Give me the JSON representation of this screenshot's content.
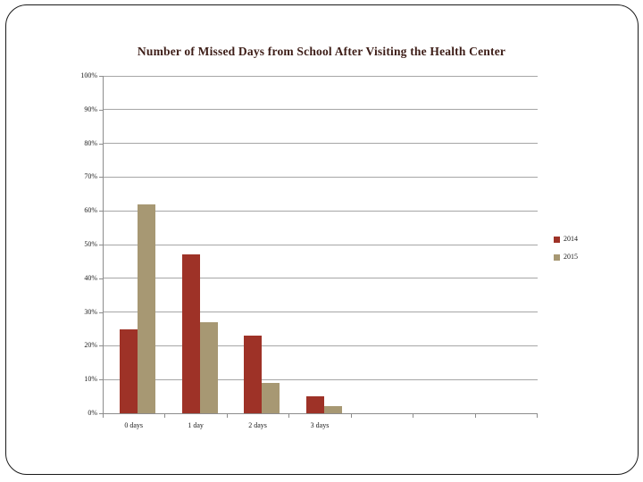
{
  "slide": {
    "title_color": "#3d1d17"
  },
  "chart_data": {
    "type": "bar",
    "title": "Number of Missed Days from School After Visiting the Health Center",
    "categories": [
      "0 days",
      "1 day",
      "2 days",
      "3 days"
    ],
    "extra_unlabeled_category_slots": 3,
    "series": [
      {
        "name": "2014",
        "color": "#9e3227",
        "values": [
          25,
          47,
          23,
          5
        ]
      },
      {
        "name": "2015",
        "color": "#a79873",
        "values": [
          62,
          27,
          9,
          2
        ]
      }
    ],
    "xlabel": "",
    "ylabel": "",
    "ylim": [
      0,
      100
    ],
    "ytick_step": 10,
    "ytick_labels": [
      "0%",
      "10%",
      "20%",
      "30%",
      "40%",
      "50%",
      "60%",
      "70%",
      "80%",
      "90%",
      "100%"
    ],
    "grid": true,
    "gridline_color": "#a6a6a6",
    "axis_color": "#8c8c8c",
    "legend_position": "right",
    "legend_entries": [
      "2014",
      "2015"
    ]
  }
}
